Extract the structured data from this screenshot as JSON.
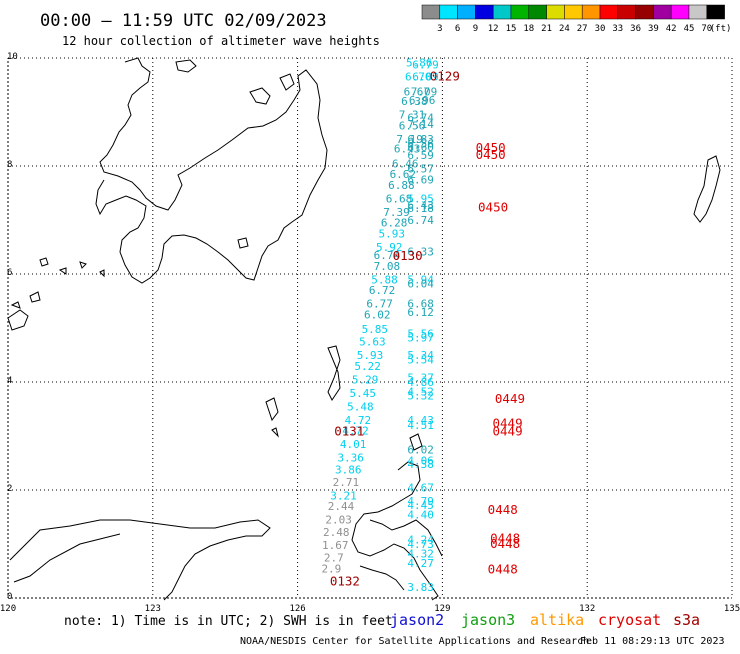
{
  "header": {
    "title": "00:00 – 11:59 UTC 02/09/2023",
    "subtitle": "12 hour collection of altimeter wave heights"
  },
  "colorbar": {
    "unit": "(ft)",
    "labels": [
      "3",
      "6",
      "9",
      "12",
      "15",
      "18",
      "21",
      "24",
      "27",
      "30",
      "33",
      "36",
      "39",
      "42",
      "45",
      "70"
    ],
    "colors": [
      "#8c8c8c",
      "#00e5ff",
      "#00b0ff",
      "#0000e0",
      "#00c8c8",
      "#00b400",
      "#008800",
      "#dcdc00",
      "#ffc800",
      "#ff9600",
      "#ff0000",
      "#c80000",
      "#960000",
      "#a000a0",
      "#ff00ff",
      "#c8c8c8",
      "#000000"
    ]
  },
  "footer": {
    "note": "note: 1) Time is in UTC; 2) SWH is in feet",
    "satellites": [
      {
        "name": "jason2",
        "color": "#1010d0"
      },
      {
        "name": "jason3",
        "color": "#10a010"
      },
      {
        "name": "altika",
        "color": "#ff9900"
      },
      {
        "name": "cryosat",
        "color": "#e00000"
      },
      {
        "name": "s3a",
        "color": "#a00000"
      }
    ],
    "credit_left": "NOAA/NESDIS Center for Satellite Applications and Research",
    "credit_right": "Feb 11 08:29:13 UTC 2023"
  },
  "chart_data": {
    "type": "scatter",
    "title": "00:00 – 11:59 UTC 02/09/2023",
    "subtitle": "12 hour collection of altimeter wave heights",
    "xlim": [
      120,
      135
    ],
    "ylim": [
      0,
      10
    ],
    "x_ticks": [
      "120",
      "123",
      "126",
      "129",
      "132",
      "135"
    ],
    "y_ticks": [
      "0",
      "2",
      "4",
      "6",
      "8",
      "10"
    ],
    "grid": true,
    "colors": {
      "teal": "#1ea5b4",
      "cyan": "#00d0ee",
      "gray": "#909090"
    },
    "wave_heights": [
      {
        "x": 128.52,
        "y": 9.92,
        "v": "5.86",
        "c": "cyan"
      },
      {
        "x": 128.65,
        "y": 9.88,
        "v": "6.79",
        "c": "cyan"
      },
      {
        "x": 128.5,
        "y": 9.66,
        "v": "6.70",
        "c": "cyan"
      },
      {
        "x": 128.65,
        "y": 9.66,
        "v": "6.09",
        "c": "cyan"
      },
      {
        "x": 128.47,
        "y": 9.38,
        "v": "6.67",
        "c": "teal"
      },
      {
        "x": 128.62,
        "y": 9.38,
        "v": "7.09",
        "c": "teal"
      },
      {
        "x": 128.42,
        "y": 9.2,
        "v": "6.38",
        "c": "teal"
      },
      {
        "x": 128.58,
        "y": 9.22,
        "v": "6.96",
        "c": "teal"
      },
      {
        "x": 128.37,
        "y": 8.95,
        "v": "7.31",
        "c": "teal"
      },
      {
        "x": 128.55,
        "y": 8.9,
        "v": "6.74",
        "c": "teal"
      },
      {
        "x": 128.37,
        "y": 8.75,
        "v": "6.56",
        "c": "teal"
      },
      {
        "x": 128.55,
        "y": 8.78,
        "v": "7.14",
        "c": "teal"
      },
      {
        "x": 128.32,
        "y": 8.5,
        "v": "7.19",
        "c": "teal"
      },
      {
        "x": 128.55,
        "y": 8.5,
        "v": "6.83",
        "c": "teal"
      },
      {
        "x": 128.55,
        "y": 8.42,
        "v": "6.56",
        "c": "teal"
      },
      {
        "x": 128.55,
        "y": 8.35,
        "v": "6.60",
        "c": "teal"
      },
      {
        "x": 128.27,
        "y": 8.32,
        "v": "6.43",
        "c": "teal"
      },
      {
        "x": 128.55,
        "y": 8.2,
        "v": "6.59",
        "c": "teal"
      },
      {
        "x": 128.23,
        "y": 8.05,
        "v": "6.46",
        "c": "teal"
      },
      {
        "x": 128.55,
        "y": 7.95,
        "v": "6.57",
        "c": "teal"
      },
      {
        "x": 128.18,
        "y": 7.85,
        "v": "6.62",
        "c": "teal"
      },
      {
        "x": 128.55,
        "y": 7.75,
        "v": "6.69",
        "c": "teal"
      },
      {
        "x": 128.15,
        "y": 7.65,
        "v": "6.88",
        "c": "teal"
      },
      {
        "x": 128.1,
        "y": 7.4,
        "v": "6.68",
        "c": "teal"
      },
      {
        "x": 128.55,
        "y": 7.4,
        "v": "5.95",
        "c": "cyan"
      },
      {
        "x": 128.55,
        "y": 7.28,
        "v": "6.43",
        "c": "teal"
      },
      {
        "x": 128.55,
        "y": 7.22,
        "v": "6.18",
        "c": "teal"
      },
      {
        "x": 128.05,
        "y": 7.15,
        "v": "7.39",
        "c": "teal"
      },
      {
        "x": 128.55,
        "y": 7.0,
        "v": "6.74",
        "c": "teal"
      },
      {
        "x": 128.0,
        "y": 6.95,
        "v": "6.28",
        "c": "teal"
      },
      {
        "x": 127.95,
        "y": 6.75,
        "v": "5.93",
        "c": "cyan"
      },
      {
        "x": 127.9,
        "y": 6.5,
        "v": "5.92",
        "c": "cyan"
      },
      {
        "x": 128.55,
        "y": 6.42,
        "v": "6.33",
        "c": "teal"
      },
      {
        "x": 127.85,
        "y": 6.35,
        "v": "6.74",
        "c": "teal"
      },
      {
        "x": 127.85,
        "y": 6.15,
        "v": "7.08",
        "c": "teal"
      },
      {
        "x": 127.8,
        "y": 5.9,
        "v": "5.88",
        "c": "cyan"
      },
      {
        "x": 128.55,
        "y": 5.9,
        "v": "5.94",
        "c": "cyan"
      },
      {
        "x": 128.55,
        "y": 5.82,
        "v": "6.04",
        "c": "teal"
      },
      {
        "x": 127.75,
        "y": 5.7,
        "v": "6.72",
        "c": "teal"
      },
      {
        "x": 127.7,
        "y": 5.45,
        "v": "6.77",
        "c": "teal"
      },
      {
        "x": 128.55,
        "y": 5.45,
        "v": "6.68",
        "c": "teal"
      },
      {
        "x": 128.55,
        "y": 5.3,
        "v": "6.12",
        "c": "teal"
      },
      {
        "x": 127.65,
        "y": 5.25,
        "v": "6.02",
        "c": "teal"
      },
      {
        "x": 127.6,
        "y": 4.98,
        "v": "5.85",
        "c": "cyan"
      },
      {
        "x": 128.55,
        "y": 4.9,
        "v": "5.56",
        "c": "cyan"
      },
      {
        "x": 128.55,
        "y": 4.82,
        "v": "5.97",
        "c": "cyan"
      },
      {
        "x": 127.55,
        "y": 4.75,
        "v": "5.63",
        "c": "cyan"
      },
      {
        "x": 127.5,
        "y": 4.5,
        "v": "5.93",
        "c": "cyan"
      },
      {
        "x": 128.55,
        "y": 4.5,
        "v": "5.34",
        "c": "cyan"
      },
      {
        "x": 128.55,
        "y": 4.42,
        "v": "5.54",
        "c": "cyan"
      },
      {
        "x": 127.45,
        "y": 4.3,
        "v": "5.22",
        "c": "cyan"
      },
      {
        "x": 128.55,
        "y": 4.08,
        "v": "5.37",
        "c": "cyan"
      },
      {
        "x": 127.4,
        "y": 4.05,
        "v": "5.29",
        "c": "cyan"
      },
      {
        "x": 128.55,
        "y": 4.0,
        "v": "4.86",
        "c": "cyan"
      },
      {
        "x": 127.35,
        "y": 3.8,
        "v": "5.45",
        "c": "cyan"
      },
      {
        "x": 128.55,
        "y": 3.82,
        "v": "4.52",
        "c": "cyan"
      },
      {
        "x": 128.55,
        "y": 3.75,
        "v": "5.32",
        "c": "cyan"
      },
      {
        "x": 127.3,
        "y": 3.55,
        "v": "5.48",
        "c": "cyan"
      },
      {
        "x": 127.25,
        "y": 3.3,
        "v": "4.72",
        "c": "cyan"
      },
      {
        "x": 128.55,
        "y": 3.3,
        "v": "4.43",
        "c": "cyan"
      },
      {
        "x": 128.55,
        "y": 3.2,
        "v": "4.51",
        "c": "cyan"
      },
      {
        "x": 127.2,
        "y": 3.1,
        "v": "4.72",
        "c": "cyan"
      },
      {
        "x": 127.15,
        "y": 2.85,
        "v": "4.01",
        "c": "cyan"
      },
      {
        "x": 128.55,
        "y": 2.75,
        "v": "6.02",
        "c": "teal"
      },
      {
        "x": 127.1,
        "y": 2.6,
        "v": "3.36",
        "c": "cyan"
      },
      {
        "x": 128.55,
        "y": 2.55,
        "v": "4.06",
        "c": "cyan"
      },
      {
        "x": 128.55,
        "y": 2.48,
        "v": "4.38",
        "c": "cyan"
      },
      {
        "x": 127.05,
        "y": 2.38,
        "v": "3.86",
        "c": "cyan"
      },
      {
        "x": 127.0,
        "y": 2.15,
        "v": "2.71",
        "c": "gray"
      },
      {
        "x": 128.55,
        "y": 2.05,
        "v": "4.67",
        "c": "cyan"
      },
      {
        "x": 126.95,
        "y": 1.9,
        "v": "3.21",
        "c": "cyan"
      },
      {
        "x": 128.55,
        "y": 1.8,
        "v": "4.79",
        "c": "cyan"
      },
      {
        "x": 128.55,
        "y": 1.72,
        "v": "4.45",
        "c": "cyan"
      },
      {
        "x": 126.9,
        "y": 1.7,
        "v": "2.44",
        "c": "gray"
      },
      {
        "x": 128.55,
        "y": 1.55,
        "v": "4.40",
        "c": "cyan"
      },
      {
        "x": 126.85,
        "y": 1.45,
        "v": "2.03",
        "c": "gray"
      },
      {
        "x": 126.8,
        "y": 1.22,
        "v": "2.48",
        "c": "gray"
      },
      {
        "x": 128.55,
        "y": 1.08,
        "v": "4.24",
        "c": "cyan"
      },
      {
        "x": 128.55,
        "y": 1.0,
        "v": "4.73",
        "c": "cyan"
      },
      {
        "x": 126.78,
        "y": 0.98,
        "v": "1.67",
        "c": "gray"
      },
      {
        "x": 128.55,
        "y": 0.82,
        "v": "4.32",
        "c": "cyan"
      },
      {
        "x": 126.75,
        "y": 0.75,
        "v": "2.7",
        "c": "gray"
      },
      {
        "x": 128.55,
        "y": 0.65,
        "v": "4.27",
        "c": "cyan"
      },
      {
        "x": 126.7,
        "y": 0.55,
        "v": "2.9",
        "c": "gray"
      },
      {
        "x": 128.55,
        "y": 0.2,
        "v": "3.83",
        "c": "cyan"
      }
    ],
    "pass_times": [
      {
        "x": 129.05,
        "y": 9.68,
        "t": "0129",
        "c": "#a00000"
      },
      {
        "x": 130.0,
        "y": 8.35,
        "t": "0450",
        "c": "#e00000"
      },
      {
        "x": 130.0,
        "y": 8.22,
        "t": "0450",
        "c": "#e00000"
      },
      {
        "x": 130.05,
        "y": 7.25,
        "t": "0450",
        "c": "#e00000"
      },
      {
        "x": 128.28,
        "y": 6.35,
        "t": "0130",
        "c": "#a00000"
      },
      {
        "x": 130.4,
        "y": 3.7,
        "t": "0449",
        "c": "#e00000"
      },
      {
        "x": 130.35,
        "y": 3.25,
        "t": "0449",
        "c": "#e00000"
      },
      {
        "x": 130.35,
        "y": 3.1,
        "t": "0449",
        "c": "#e00000"
      },
      {
        "x": 127.07,
        "y": 3.1,
        "t": "0131",
        "c": "#a00000"
      },
      {
        "x": 130.25,
        "y": 1.65,
        "t": "0448",
        "c": "#e00000"
      },
      {
        "x": 130.3,
        "y": 1.12,
        "t": "0448",
        "c": "#e00000"
      },
      {
        "x": 130.3,
        "y": 1.02,
        "t": "0448",
        "c": "#e00000"
      },
      {
        "x": 130.25,
        "y": 0.55,
        "t": "0448",
        "c": "#e00000"
      },
      {
        "x": 126.98,
        "y": 0.32,
        "t": "0132",
        "c": "#a00000"
      }
    ]
  }
}
